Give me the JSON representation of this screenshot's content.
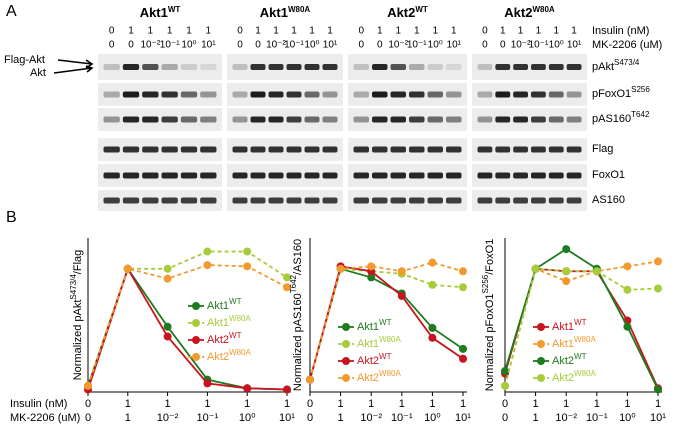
{
  "panels": [
    "A",
    "B"
  ],
  "blots": {
    "groups": [
      {
        "name": "Akt1",
        "sup": "WT"
      },
      {
        "name": "Akt1",
        "sup": "W80A"
      },
      {
        "name": "Akt2",
        "sup": "WT"
      },
      {
        "name": "Akt2",
        "sup": "W80A"
      }
    ],
    "insulin": [
      0,
      1,
      1,
      1,
      1,
      1
    ],
    "mk": [
      0,
      0,
      "10⁻²",
      "10⁻¹",
      "10⁰",
      "10¹"
    ],
    "row_labels": {
      "insulin": "Insulin (nM)",
      "mk": "MK-2206 (uM)"
    },
    "markers": [
      "Flag-Akt",
      "Akt"
    ],
    "rows": [
      {
        "name": "pAkt",
        "sup": "S473/4"
      },
      {
        "name": "pFoxO1",
        "sup": "S256"
      },
      {
        "name": "pAS160",
        "sup": "T642"
      },
      {
        "name": "Flag"
      },
      {
        "name": "FoxO1"
      },
      {
        "name": "AS160"
      }
    ]
  },
  "x_row_labels": {
    "insulin": "Insulin (nM)",
    "mk": "MK-2206 (uM)"
  },
  "chart_data": [
    {
      "type": "line",
      "ylabel": {
        "pre": "Normalized pAkt",
        "sup": "S473/4",
        "post": "/Flag"
      },
      "categories": [
        0,
        1,
        "10⁻²",
        "10⁻¹",
        "10⁰",
        "10¹"
      ],
      "insulin": [
        0,
        1,
        1,
        1,
        1,
        1
      ],
      "ylim": [
        0,
        1.25
      ],
      "legend": "center",
      "series": [
        {
          "name": "Akt1",
          "sup": "WT",
          "color": "#1e7b1e",
          "dashed": false,
          "values": [
            0.05,
            1,
            0.53,
            0.1,
            0.03,
            0.02
          ]
        },
        {
          "name": "Akt1",
          "sup": "W80A",
          "color": "#a6cc3a",
          "dashed": true,
          "values": [
            0.05,
            1,
            1.0,
            1.14,
            1.14,
            0.93
          ]
        },
        {
          "name": "Akt2",
          "sup": "WT",
          "color": "#c8141e",
          "dashed": false,
          "values": [
            0.02,
            1,
            0.45,
            0.07,
            0.03,
            0.02
          ]
        },
        {
          "name": "Akt2",
          "sup": "W80A",
          "color": "#f39a2e",
          "dashed": true,
          "values": [
            0.05,
            1,
            0.92,
            1.03,
            1.02,
            0.85
          ]
        }
      ]
    },
    {
      "type": "line",
      "ylabel": {
        "pre": "Normalized pAS160",
        "sup": "T642",
        "post": "/AS160"
      },
      "categories": [
        0,
        1,
        "10⁻²",
        "10⁻¹",
        "10⁰",
        "10¹"
      ],
      "insulin": [
        0,
        1,
        1,
        1,
        1,
        1
      ],
      "ylim": [
        0,
        1.25
      ],
      "legend": "center",
      "series": [
        {
          "name": "Akt1",
          "sup": "WT",
          "color": "#1e7b1e",
          "dashed": false,
          "values": [
            0.1,
            1.0,
            0.93,
            0.8,
            0.52,
            0.35
          ]
        },
        {
          "name": "Akt1",
          "sup": "W80A",
          "color": "#a6cc3a",
          "dashed": true,
          "values": [
            0.1,
            1.0,
            0.98,
            0.96,
            0.87,
            0.85
          ]
        },
        {
          "name": "Akt2",
          "sup": "WT",
          "color": "#c8141e",
          "dashed": false,
          "values": [
            0.1,
            1.02,
            0.98,
            0.78,
            0.44,
            0.27
          ]
        },
        {
          "name": "Akt2",
          "sup": "W80A",
          "color": "#f39a2e",
          "dashed": true,
          "values": [
            0.1,
            1.0,
            1.02,
            0.98,
            1.05,
            0.98
          ]
        }
      ]
    },
    {
      "type": "line",
      "ylabel": {
        "pre": "Normalized pFoxO1",
        "sup": "S256",
        "post": "/FoxO1"
      },
      "categories": [
        0,
        1,
        "10⁻²",
        "10⁻¹",
        "10⁰",
        "10¹"
      ],
      "insulin": [
        0,
        1,
        1,
        1,
        1,
        1
      ],
      "ylim": [
        0,
        1.25
      ],
      "legend": "center",
      "series": [
        {
          "name": "Akt1",
          "sup": "WT",
          "color": "#c8141e",
          "dashed": false,
          "values": [
            0.15,
            1.0,
            0.98,
            0.98,
            0.58,
            0.03
          ]
        },
        {
          "name": "Akt1",
          "sup": "W80A",
          "color": "#f39a2e",
          "dashed": true,
          "values": [
            0.05,
            1.0,
            0.9,
            0.98,
            1.02,
            1.06
          ]
        },
        {
          "name": "Akt2",
          "sup": "WT",
          "color": "#1e7b1e",
          "dashed": false,
          "values": [
            0.17,
            1.0,
            1.16,
            1.0,
            0.53,
            0.02
          ]
        },
        {
          "name": "Akt2",
          "sup": "W80A",
          "color": "#a6cc3a",
          "dashed": true,
          "values": [
            0.05,
            1.0,
            0.98,
            0.98,
            0.83,
            0.84
          ]
        }
      ]
    }
  ]
}
